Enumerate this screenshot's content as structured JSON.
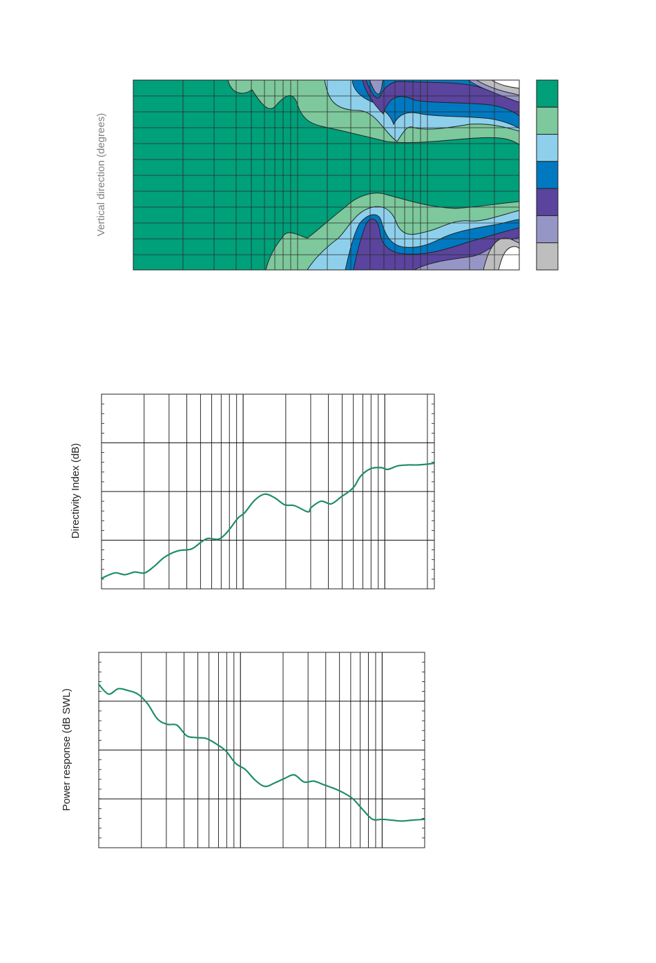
{
  "chart_data": [
    {
      "type": "heatmap",
      "title": "",
      "xlabel": "",
      "ylabel": "Vertical direction (degrees)",
      "axis_scale": "log-frequency",
      "grid": true,
      "legend_placement": "right",
      "level_colors": [
        "#00A07A",
        "#7DC89C",
        "#8ED0EC",
        "#0079C1",
        "#5A449D",
        "#9696C6",
        "#BEBEBE",
        "#FFFFFF"
      ]
    },
    {
      "type": "line",
      "title": "",
      "xlabel": "",
      "ylabel": "Directivity Index (dB)",
      "axis_scale": "log-frequency",
      "grid": true,
      "line_color": "#1F8C6A",
      "ylim": [
        0,
        22
      ],
      "series": [
        {
          "x": [
            0.0,
            0.04,
            0.07,
            0.1,
            0.13,
            0.16,
            0.19,
            0.23,
            0.27,
            0.3,
            0.32,
            0.35,
            0.37,
            0.39,
            0.41,
            0.43,
            0.46,
            0.49,
            0.52,
            0.55,
            0.58,
            0.62,
            0.63,
            0.66,
            0.69,
            0.72,
            0.74,
            0.76,
            0.78,
            0.81,
            0.84,
            0.86,
            0.89,
            0.92,
            0.95,
            0.98,
            1.0
          ],
          "values": [
            1.2,
            1.8,
            1.6,
            1.9,
            1.8,
            2.6,
            3.6,
            4.3,
            4.5,
            5.3,
            5.7,
            5.6,
            6.1,
            7.0,
            8.0,
            8.6,
            10.0,
            10.7,
            10.3,
            9.5,
            9.4,
            8.7,
            9.2,
            9.9,
            9.6,
            10.4,
            10.9,
            11.6,
            12.8,
            13.6,
            13.7,
            13.5,
            13.9,
            14.0,
            14.0,
            14.1,
            14.2
          ]
        }
      ]
    },
    {
      "type": "line",
      "title": "",
      "xlabel": "",
      "ylabel": "Power response (dB SWL)",
      "axis_scale": "log-frequency",
      "grid": true,
      "line_color": "#1F8C6A",
      "ylim": [
        0,
        22
      ],
      "series": [
        {
          "x": [
            0.0,
            0.03,
            0.06,
            0.09,
            0.12,
            0.15,
            0.18,
            0.21,
            0.24,
            0.27,
            0.3,
            0.33,
            0.36,
            0.39,
            0.42,
            0.45,
            0.48,
            0.51,
            0.54,
            0.57,
            0.6,
            0.63,
            0.66,
            0.69,
            0.72,
            0.75,
            0.78,
            0.81,
            0.84,
            0.87,
            0.9,
            0.93,
            0.96,
            1.0
          ],
          "values": [
            18.4,
            17.3,
            17.9,
            17.7,
            17.3,
            16.2,
            14.5,
            13.9,
            13.8,
            12.6,
            12.4,
            12.3,
            11.7,
            10.9,
            9.5,
            8.8,
            7.6,
            6.9,
            7.3,
            7.8,
            8.2,
            7.4,
            7.5,
            7.1,
            6.7,
            6.2,
            5.5,
            4.3,
            3.2,
            3.2,
            3.1,
            3.0,
            3.1,
            3.2
          ]
        }
      ]
    }
  ]
}
